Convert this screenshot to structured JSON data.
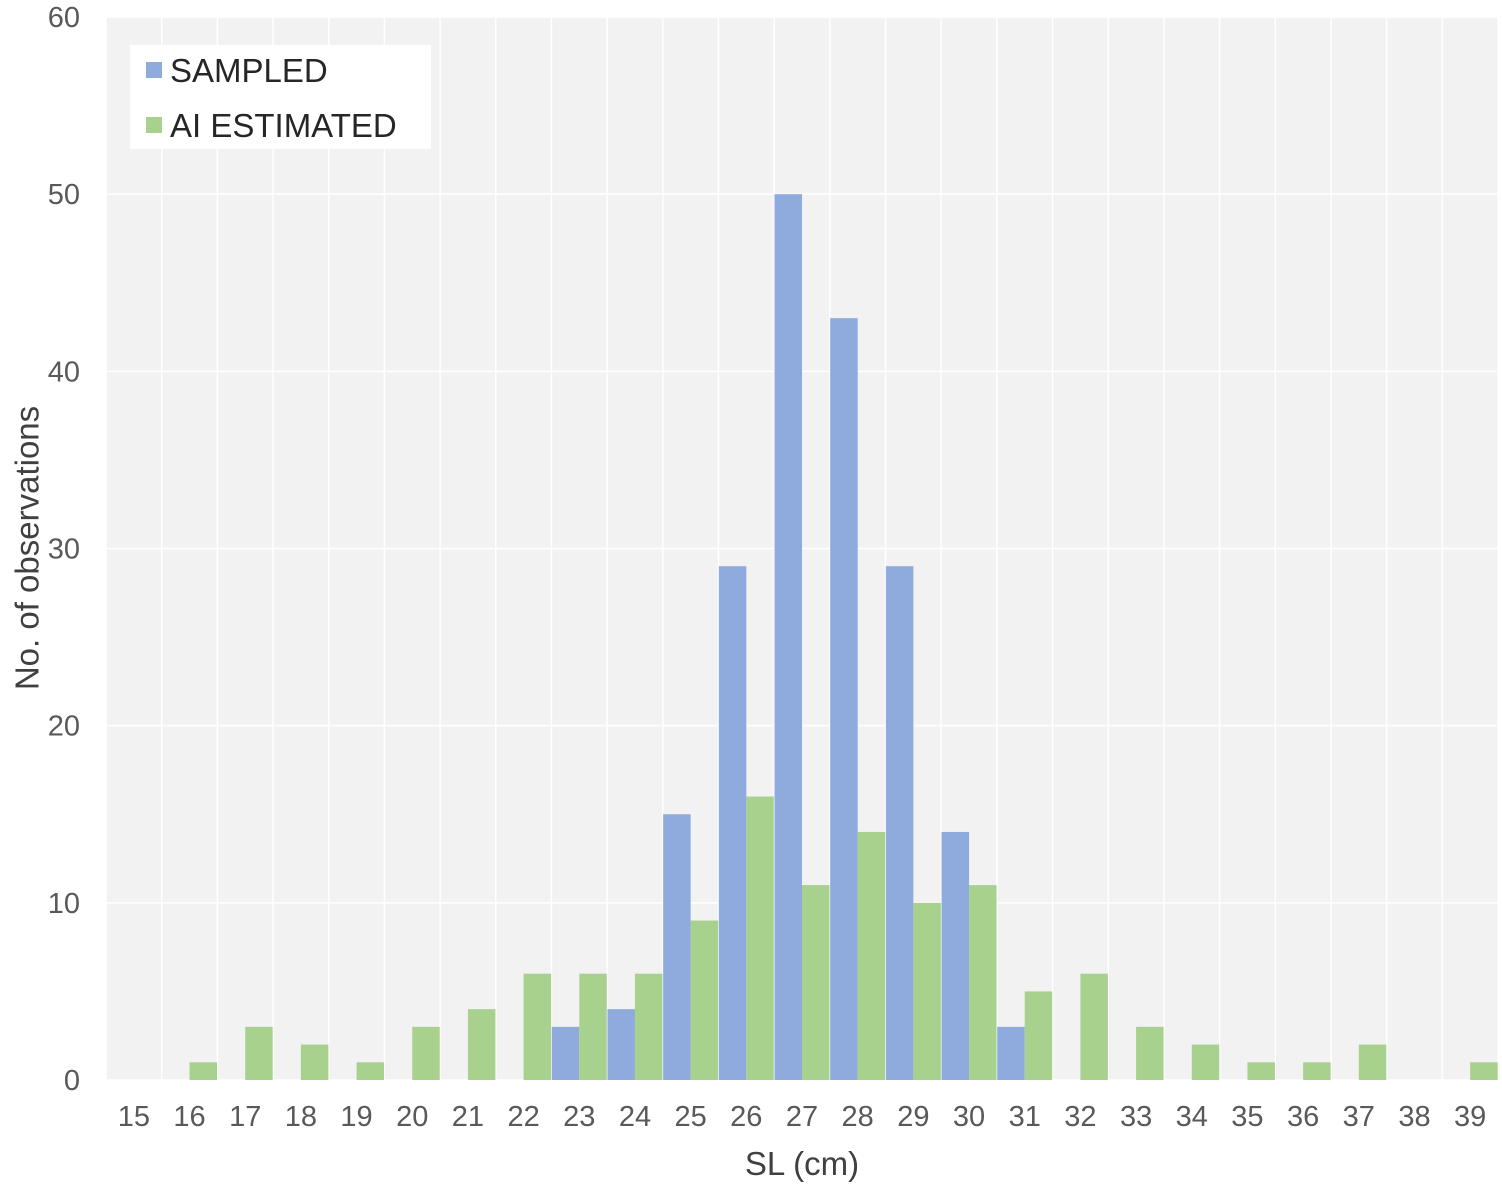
{
  "colors": {
    "plot_background": "#f2f2f2",
    "gridline": "#ffffff",
    "sampled": "#8faadc",
    "ai_estimated": "#a9d18e"
  },
  "chart_data": {
    "type": "bar",
    "title": "",
    "xlabel": "SL (cm)",
    "ylabel": "No. of observations",
    "ylim": [
      0,
      60
    ],
    "yticks": [
      "0",
      "10",
      "20",
      "30",
      "40",
      "50",
      "60"
    ],
    "grid": true,
    "legend_position": "top-left",
    "categories": [
      "15",
      "16",
      "17",
      "18",
      "19",
      "20",
      "21",
      "22",
      "23",
      "24",
      "25",
      "26",
      "27",
      "28",
      "29",
      "30",
      "31",
      "32",
      "33",
      "34",
      "35",
      "36",
      "37",
      "38",
      "39"
    ],
    "series": [
      {
        "name": "SAMPLED",
        "color": "#8faadc",
        "values": [
          0,
          0,
          0,
          0,
          0,
          0,
          0,
          0,
          3,
          4,
          15,
          29,
          50,
          43,
          29,
          14,
          3,
          0,
          0,
          0,
          0,
          0,
          0,
          0,
          0
        ]
      },
      {
        "name": "AI ESTIMATED",
        "color": "#a9d18e",
        "values": [
          0,
          1,
          3,
          2,
          1,
          3,
          4,
          6,
          6,
          6,
          9,
          16,
          11,
          14,
          10,
          11,
          5,
          6,
          3,
          2,
          1,
          1,
          2,
          0,
          1
        ]
      }
    ]
  }
}
